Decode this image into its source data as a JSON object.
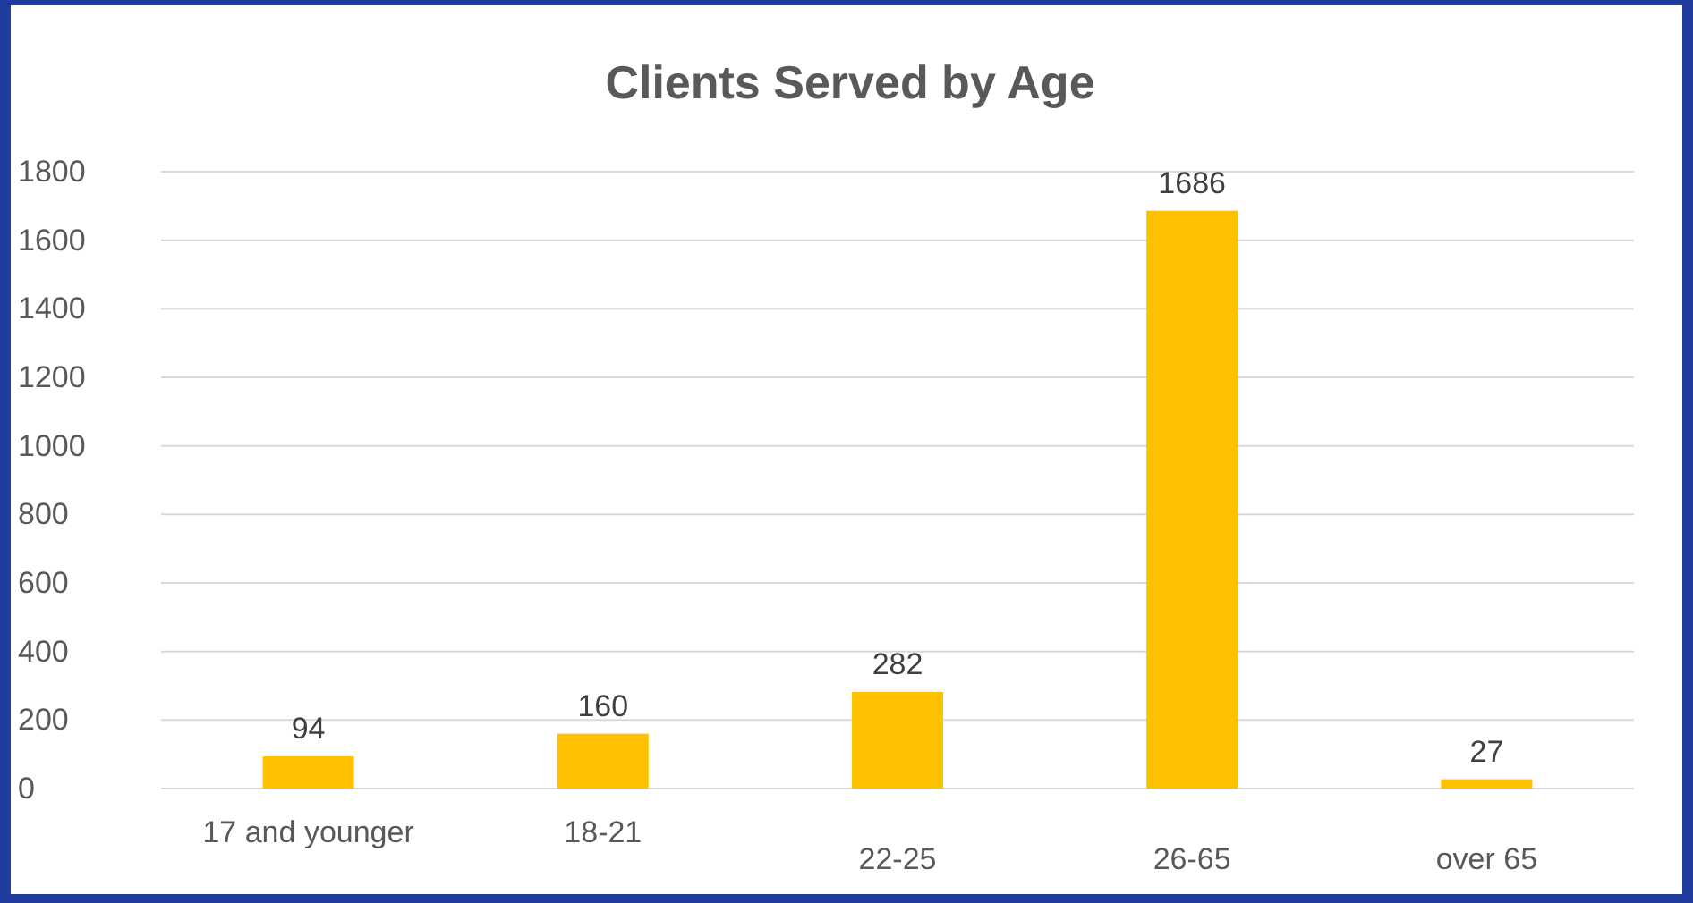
{
  "chart_data": {
    "type": "bar",
    "title": "Clients Served by Age",
    "categories": [
      "17 and younger",
      "18-21",
      "22-25",
      "26-65",
      "over 65"
    ],
    "values": [
      94,
      160,
      282,
      1686,
      27
    ],
    "color": "#ffc000",
    "ylim": [
      0,
      1800
    ],
    "yticks": [
      0,
      200,
      400,
      600,
      800,
      1000,
      1200,
      1400,
      1600,
      1800
    ],
    "grid": "y",
    "data_labels": true
  }
}
